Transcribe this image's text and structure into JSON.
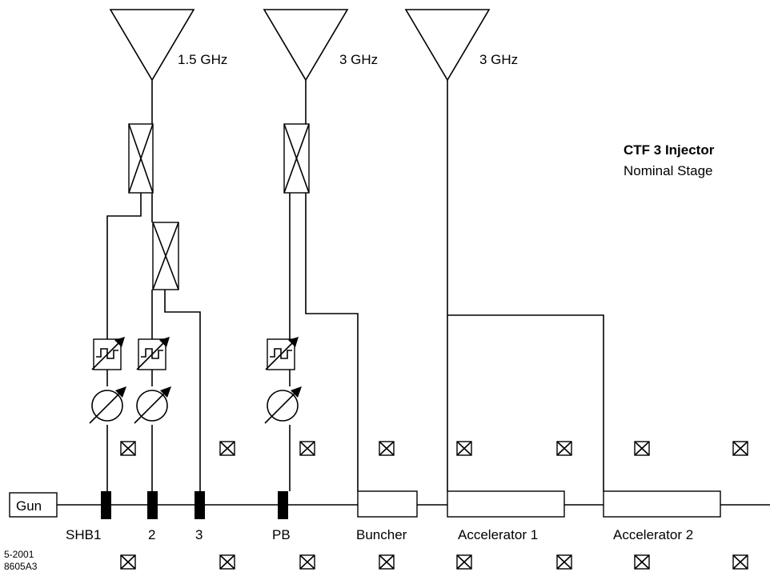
{
  "antennas": [
    {
      "freq": "1.5 GHz"
    },
    {
      "freq": "3 GHz"
    },
    {
      "freq": "3 GHz"
    }
  ],
  "title": {
    "line1": "CTF 3 Injector",
    "line2": "Nominal Stage"
  },
  "gun_label": "Gun",
  "beam_labels": {
    "shb1": "SHB1",
    "shb2": "2",
    "shb3": "3",
    "pb": "PB",
    "buncher": "Buncher",
    "acc1": "Accelerator 1",
    "acc2": "Accelerator 2"
  },
  "figure_id": {
    "line1": "5-2001",
    "line2": "8605A3"
  }
}
